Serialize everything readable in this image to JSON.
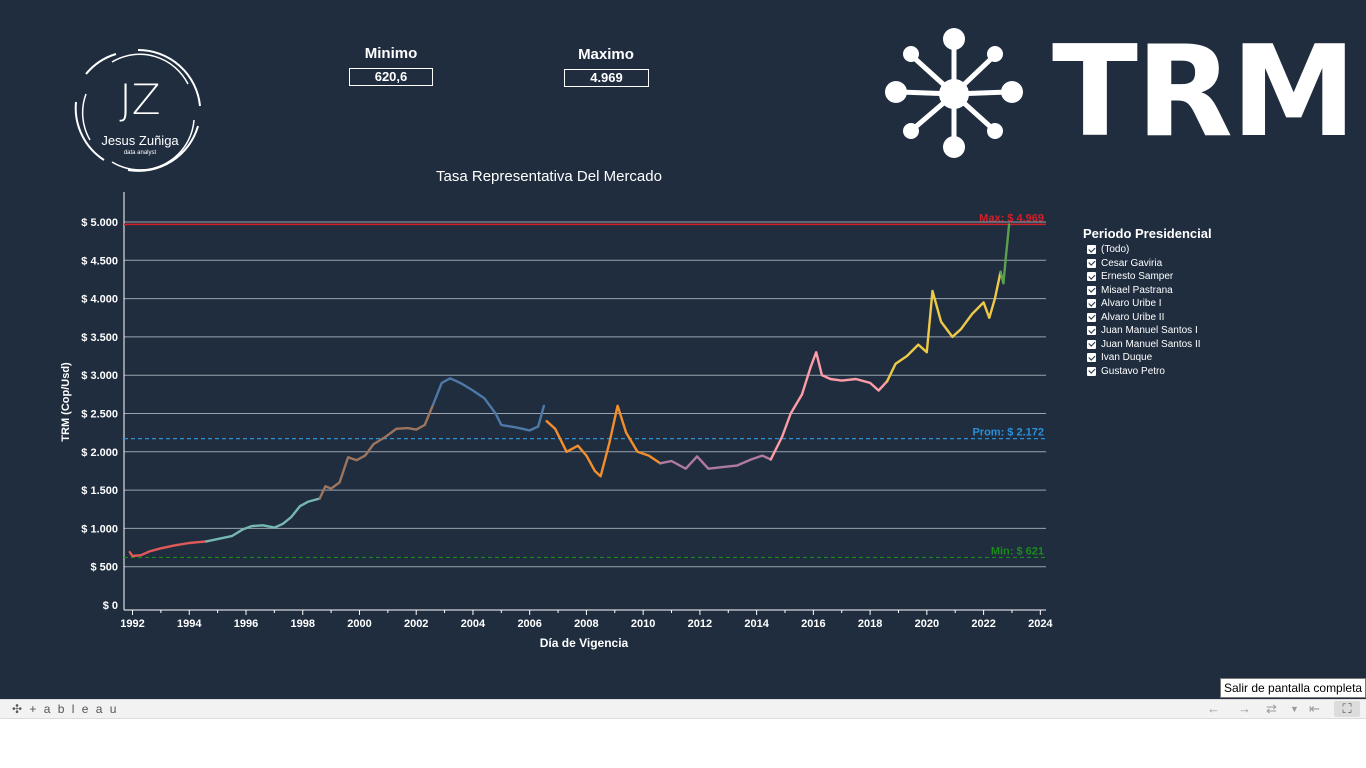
{
  "kpis": {
    "min_label": "Minimo",
    "min_value": "620,6",
    "max_label": "Maximo",
    "max_value": "4.969"
  },
  "logo": {
    "initials": "JZ",
    "name": "Jesus Zuñiga",
    "role": "data analyst"
  },
  "brand": {
    "text": "TRM"
  },
  "legend": {
    "title": "Periodo  Presidencial",
    "items": [
      "(Todo)",
      "Cesar Gaviria",
      "Ernesto Samper",
      "Misael Pastrana",
      "Alvaro Uribe I",
      "Alvaro Uribe II",
      "Juan Manuel Santos I",
      "Juan Manuel Santos II",
      "Ivan Duque",
      "Gustavo Petro"
    ]
  },
  "toolbar": {
    "brand": "+ a b l e a u",
    "tooltip": "Salir de pantalla completa"
  },
  "colors": {
    "background": "#1f2d3f",
    "max_line": "#d0202a",
    "avg_line": "#2b8fd6",
    "min_line": "#1a8a1a",
    "gaviria": "#e05a5a",
    "samper": "#76b7b2",
    "pastrana": "#9c755f",
    "uribe1": "#4e79a7",
    "uribe2": "#f28e2b",
    "santos1": "#b07aa1",
    "santos2": "#ff9da7",
    "duque": "#edc948",
    "petro": "#59a14f"
  },
  "chart_data": {
    "type": "line",
    "title": "Tasa Representativa Del Mercado",
    "xlabel": "Día de Vigencia",
    "ylabel": "TRM (Cop/Usd)",
    "xlim": [
      1991.7,
      2024.2
    ],
    "ylim": [
      0,
      5000
    ],
    "x_ticks": [
      1992,
      1994,
      1996,
      1998,
      2000,
      2002,
      2004,
      2006,
      2008,
      2010,
      2012,
      2014,
      2016,
      2018,
      2020,
      2022,
      2024
    ],
    "y_ticks": [
      0,
      500,
      1000,
      1500,
      2000,
      2500,
      3000,
      3500,
      4000,
      4500,
      5000
    ],
    "y_tick_labels": [
      "$ 0",
      "$ 500",
      "$ 1.000",
      "$ 1.500",
      "$ 2.000",
      "$ 2.500",
      "$ 3.000",
      "$ 3.500",
      "$ 4.000",
      "$ 4.500",
      "$ 5.000"
    ],
    "reference_lines": [
      {
        "label": "Max: $ 4.969",
        "value": 4969,
        "color": "#d0202a",
        "style": "solid"
      },
      {
        "label": "Prom: $ 2.172",
        "value": 2172,
        "color": "#2b8fd6",
        "style": "dashed"
      },
      {
        "label": "Min: $ 621",
        "value": 621,
        "color": "#1a8a1a",
        "style": "dashed"
      }
    ],
    "grid": true,
    "series": [
      {
        "name": "Cesar Gaviria",
        "color": "#e05a5a",
        "points": [
          [
            1991.9,
            690
          ],
          [
            1992.0,
            640
          ],
          [
            1992.3,
            650
          ],
          [
            1992.6,
            700
          ],
          [
            1993.0,
            740
          ],
          [
            1993.5,
            780
          ],
          [
            1994.0,
            810
          ],
          [
            1994.3,
            820
          ],
          [
            1994.6,
            830
          ]
        ]
      },
      {
        "name": "Ernesto Samper",
        "color": "#76b7b2",
        "points": [
          [
            1994.6,
            830
          ],
          [
            1995.0,
            860
          ],
          [
            1995.5,
            900
          ],
          [
            1995.9,
            990
          ],
          [
            1996.2,
            1030
          ],
          [
            1996.6,
            1040
          ],
          [
            1997.0,
            1010
          ],
          [
            1997.3,
            1060
          ],
          [
            1997.6,
            1150
          ],
          [
            1997.9,
            1290
          ],
          [
            1998.2,
            1350
          ],
          [
            1998.6,
            1390
          ]
        ]
      },
      {
        "name": "Misael Pastrana",
        "color": "#9c755f",
        "points": [
          [
            1998.6,
            1390
          ],
          [
            1998.8,
            1550
          ],
          [
            1999.0,
            1520
          ],
          [
            1999.3,
            1600
          ],
          [
            1999.6,
            1930
          ],
          [
            1999.9,
            1890
          ],
          [
            2000.2,
            1950
          ],
          [
            2000.5,
            2100
          ],
          [
            2000.9,
            2190
          ],
          [
            2001.3,
            2300
          ],
          [
            2001.7,
            2310
          ],
          [
            2002.0,
            2290
          ],
          [
            2002.3,
            2350
          ],
          [
            2002.6,
            2620
          ]
        ]
      },
      {
        "name": "Alvaro Uribe I",
        "color": "#4e79a7",
        "points": [
          [
            2002.6,
            2620
          ],
          [
            2002.9,
            2900
          ],
          [
            2003.2,
            2960
          ],
          [
            2003.6,
            2890
          ],
          [
            2004.0,
            2800
          ],
          [
            2004.4,
            2700
          ],
          [
            2004.8,
            2500
          ],
          [
            2005.0,
            2350
          ],
          [
            2005.5,
            2320
          ],
          [
            2006.0,
            2280
          ],
          [
            2006.3,
            2330
          ],
          [
            2006.5,
            2600
          ]
        ]
      },
      {
        "name": "Alvaro Uribe II",
        "color": "#f28e2b",
        "points": [
          [
            2006.6,
            2400
          ],
          [
            2006.9,
            2300
          ],
          [
            2007.3,
            2000
          ],
          [
            2007.7,
            2080
          ],
          [
            2008.0,
            1950
          ],
          [
            2008.3,
            1750
          ],
          [
            2008.5,
            1680
          ],
          [
            2008.8,
            2100
          ],
          [
            2009.1,
            2600
          ],
          [
            2009.4,
            2250
          ],
          [
            2009.8,
            2000
          ],
          [
            2010.2,
            1950
          ],
          [
            2010.6,
            1850
          ]
        ]
      },
      {
        "name": "Juan Manuel Santos I",
        "color": "#b07aa1",
        "points": [
          [
            2010.6,
            1850
          ],
          [
            2011.0,
            1880
          ],
          [
            2011.5,
            1780
          ],
          [
            2011.9,
            1940
          ],
          [
            2012.3,
            1780
          ],
          [
            2012.8,
            1800
          ],
          [
            2013.3,
            1820
          ],
          [
            2013.8,
            1900
          ],
          [
            2014.2,
            1950
          ],
          [
            2014.5,
            1900
          ]
        ]
      },
      {
        "name": "Juan Manuel Santos II",
        "color": "#ff9da7",
        "points": [
          [
            2014.5,
            1900
          ],
          [
            2014.9,
            2200
          ],
          [
            2015.2,
            2500
          ],
          [
            2015.6,
            2750
          ],
          [
            2015.9,
            3100
          ],
          [
            2016.1,
            3300
          ],
          [
            2016.3,
            3000
          ],
          [
            2016.6,
            2950
          ],
          [
            2017.0,
            2930
          ],
          [
            2017.5,
            2950
          ],
          [
            2018.0,
            2900
          ],
          [
            2018.3,
            2800
          ],
          [
            2018.6,
            2920
          ]
        ]
      },
      {
        "name": "Ivan Duque",
        "color": "#edc948",
        "points": [
          [
            2018.6,
            2920
          ],
          [
            2018.9,
            3150
          ],
          [
            2019.3,
            3250
          ],
          [
            2019.7,
            3400
          ],
          [
            2020.0,
            3300
          ],
          [
            2020.2,
            4100
          ],
          [
            2020.5,
            3700
          ],
          [
            2020.9,
            3500
          ],
          [
            2021.2,
            3600
          ],
          [
            2021.6,
            3800
          ],
          [
            2022.0,
            3950
          ],
          [
            2022.2,
            3750
          ],
          [
            2022.4,
            4000
          ],
          [
            2022.6,
            4350
          ]
        ]
      },
      {
        "name": "Gustavo Petro",
        "color": "#59a14f",
        "points": [
          [
            2022.6,
            4350
          ],
          [
            2022.7,
            4200
          ],
          [
            2022.8,
            4600
          ],
          [
            2022.9,
            4969
          ]
        ]
      }
    ]
  }
}
